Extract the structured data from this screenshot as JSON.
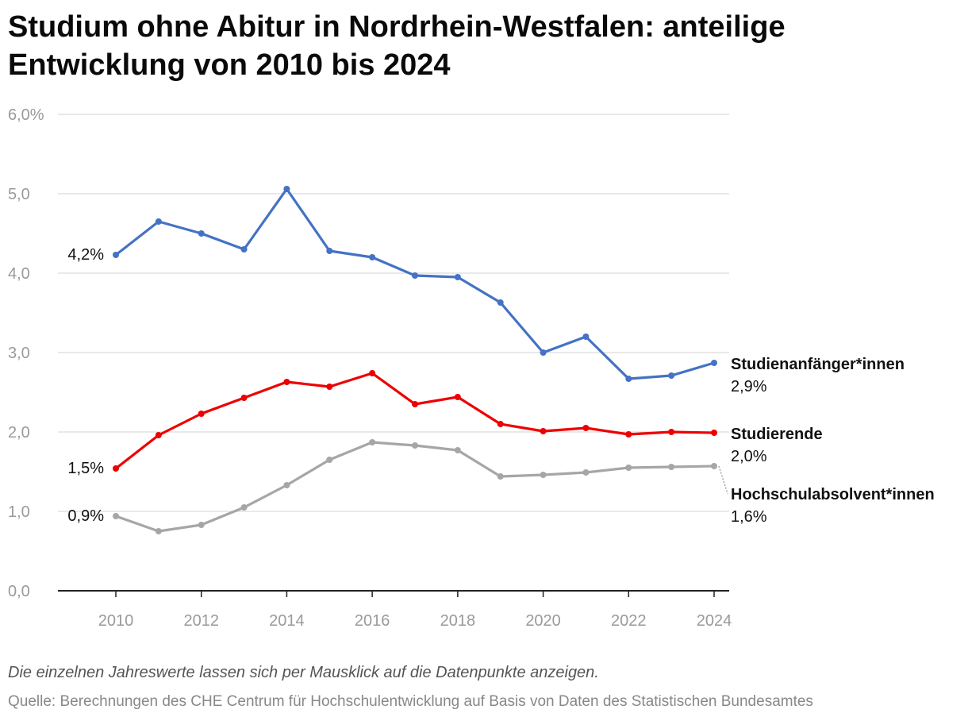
{
  "title": {
    "line1": "Studium ohne Abitur in Nordrhein-Westfalen: anteilige",
    "line2": "Entwicklung von 2010 bis 2024"
  },
  "note": "Die einzelnen Jahreswerte lassen sich per Mausklick auf die Datenpunkte anzeigen.",
  "source": "Quelle: Berechnungen des CHE Centrum für Hochschulentwicklung auf Basis von Daten des Statistischen Bundesamtes",
  "chart_data": {
    "type": "line",
    "x": [
      2010,
      2011,
      2012,
      2013,
      2014,
      2015,
      2016,
      2017,
      2018,
      2019,
      2020,
      2021,
      2022,
      2023,
      2024
    ],
    "xlim": [
      2009,
      2024.4
    ],
    "ylim": [
      0,
      6
    ],
    "yticks": [
      {
        "value": 0,
        "label": "0,0"
      },
      {
        "value": 1,
        "label": "1,0"
      },
      {
        "value": 2,
        "label": "2,0"
      },
      {
        "value": 3,
        "label": "3,0"
      },
      {
        "value": 4,
        "label": "4,0"
      },
      {
        "value": 5,
        "label": "5,0"
      },
      {
        "value": 6,
        "label": "6,0%"
      }
    ],
    "xticks": [
      {
        "value": 2010,
        "label": "2010"
      },
      {
        "value": 2012,
        "label": "2012"
      },
      {
        "value": 2014,
        "label": "2014"
      },
      {
        "value": 2016,
        "label": "2016"
      },
      {
        "value": 2018,
        "label": "2018"
      },
      {
        "value": 2020,
        "label": "2020"
      },
      {
        "value": 2022,
        "label": "2022"
      },
      {
        "value": 2024,
        "label": "2024"
      }
    ],
    "grid": true,
    "series": [
      {
        "key": "studienanfaenger",
        "name": "Studienanfänger*innen",
        "color": "#4472c4",
        "values": [
          4.23,
          4.65,
          4.5,
          4.3,
          5.06,
          4.28,
          4.2,
          3.97,
          3.95,
          3.63,
          3.0,
          3.2,
          2.67,
          2.71,
          2.87
        ],
        "start_label": "4,2%",
        "end_label": "2,9%"
      },
      {
        "key": "studierende",
        "name": "Studierende",
        "color": "#ee0000",
        "values": [
          1.54,
          1.96,
          2.23,
          2.43,
          2.63,
          2.57,
          2.74,
          2.35,
          2.44,
          2.1,
          2.01,
          2.05,
          1.97,
          2.0,
          1.99
        ],
        "start_label": "1,5%",
        "end_label": "2,0%"
      },
      {
        "key": "absolventen",
        "name": "Hochschulabsolvent*innen",
        "color": "#a6a6a6",
        "values": [
          0.94,
          0.75,
          0.83,
          1.05,
          1.33,
          1.65,
          1.87,
          1.83,
          1.77,
          1.44,
          1.46,
          1.49,
          1.55,
          1.56,
          1.57
        ],
        "start_label": "0,9%",
        "end_label": "1,6%"
      }
    ]
  }
}
